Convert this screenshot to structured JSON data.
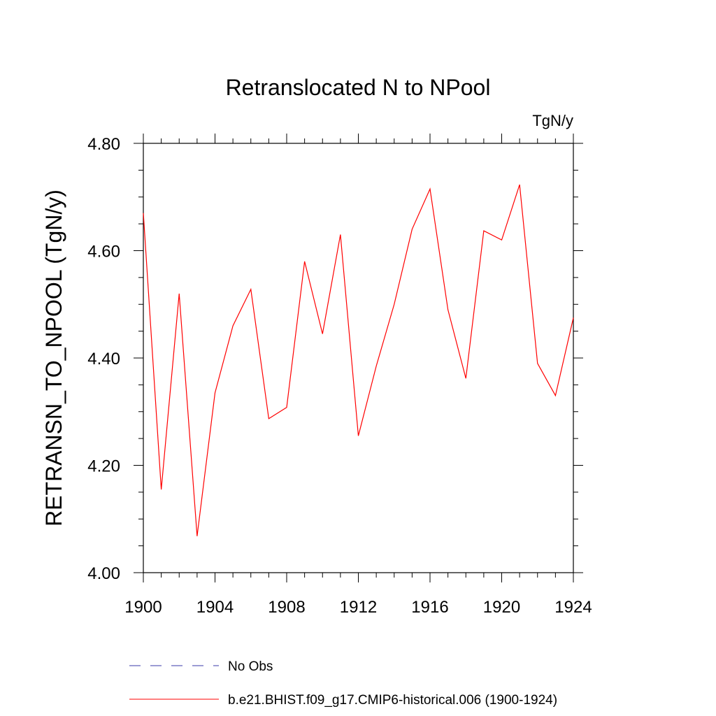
{
  "chart_data": {
    "type": "line",
    "title": "Retranslocated N to NPool",
    "units": "TgN/y",
    "ylabel": "RETRANSN_TO_NPOOL  (TgN/y)",
    "xlabel": "",
    "xlim": [
      1900,
      1924
    ],
    "ylim": [
      4.0,
      4.8
    ],
    "x_ticks": [
      1900,
      1904,
      1908,
      1912,
      1916,
      1920,
      1924
    ],
    "x_tick_labels": [
      "1900",
      "1904",
      "1908",
      "1912",
      "1916",
      "1920",
      "1924"
    ],
    "y_ticks": [
      4.0,
      4.2,
      4.4,
      4.6,
      4.8
    ],
    "y_tick_labels": [
      "4.00",
      "4.20",
      "4.40",
      "4.60",
      "4.80"
    ],
    "grid": false,
    "legend_position": "bottom",
    "legend": [
      {
        "label": "No Obs",
        "color": "#3a3aa8",
        "style": "dashed"
      },
      {
        "label": "b.e21.BHIST.f09_g17.CMIP6-historical.006 (1900-1924)",
        "color": "#ff0000",
        "style": "solid"
      }
    ],
    "series": [
      {
        "name": "b.e21.BHIST.f09_g17.CMIP6-historical.006 (1900-1924)",
        "color": "#ff0000",
        "x": [
          1900,
          1901,
          1902,
          1903,
          1904,
          1905,
          1906,
          1907,
          1908,
          1909,
          1910,
          1911,
          1912,
          1913,
          1914,
          1915,
          1916,
          1917,
          1918,
          1919,
          1920,
          1921,
          1922,
          1923,
          1924
        ],
        "values": [
          4.67,
          4.155,
          4.52,
          4.068,
          4.335,
          4.46,
          4.528,
          4.287,
          4.308,
          4.58,
          4.445,
          4.63,
          4.255,
          4.385,
          4.5,
          4.64,
          4.715,
          4.49,
          4.362,
          4.637,
          4.62,
          4.723,
          4.39,
          4.33,
          4.475
        ]
      }
    ]
  }
}
